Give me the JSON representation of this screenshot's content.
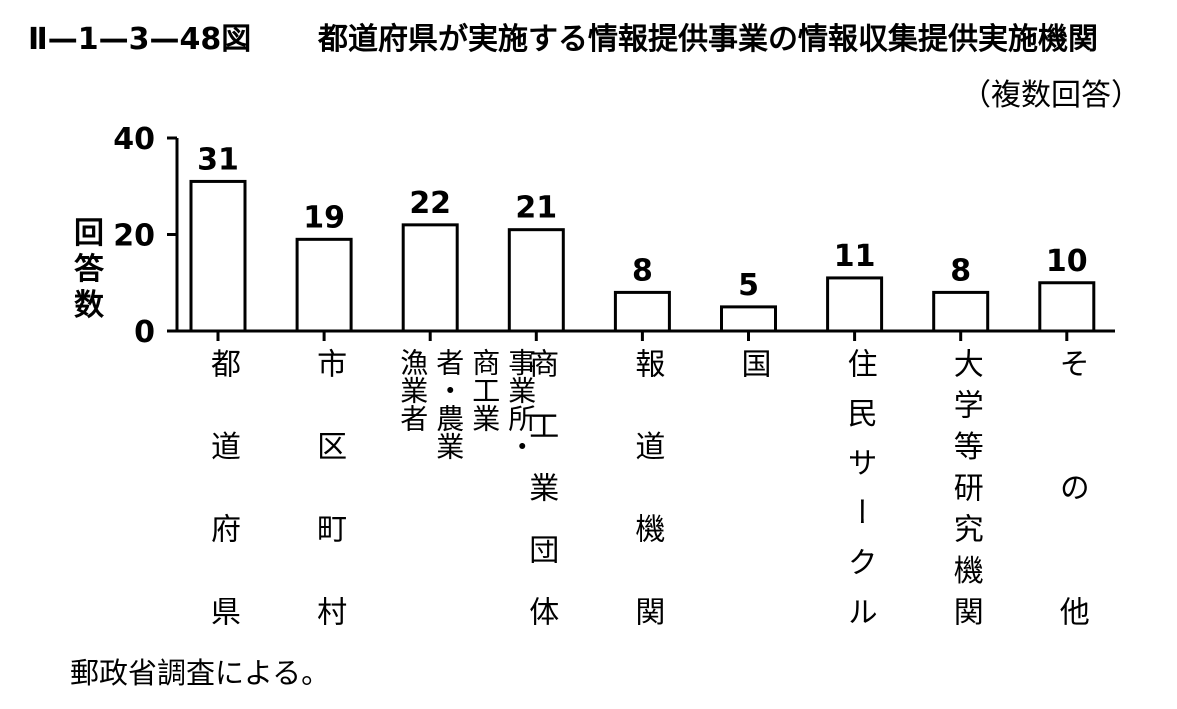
{
  "header": {
    "figure_id": "Ⅱ—1—3—48図",
    "title": "都道府県が実施する情報提供事業の情報収集提供実施機関",
    "note": "（複数回答）"
  },
  "footer": {
    "source": "郵政省調査による。"
  },
  "colors": {
    "bar_fill": "#ffffff",
    "bar_stroke": "#000000",
    "text": "#000000"
  },
  "chart_data": {
    "type": "bar",
    "title": "都道府県が実施する情報提供事業の情報収集提供実施機関",
    "xlabel": "",
    "ylabel": "回答数",
    "ylim": [
      0,
      40
    ],
    "yticks": [
      0,
      20,
      40
    ],
    "grid": false,
    "categories": [
      "都道府県",
      "市区町村",
      "事業所・商工業者・農業漁業者",
      "商工業団体",
      "報道機関",
      "国",
      "住民サークル",
      "大学等研究機関",
      "その他"
    ],
    "values": [
      31,
      19,
      22,
      21,
      8,
      5,
      11,
      8,
      10
    ]
  }
}
